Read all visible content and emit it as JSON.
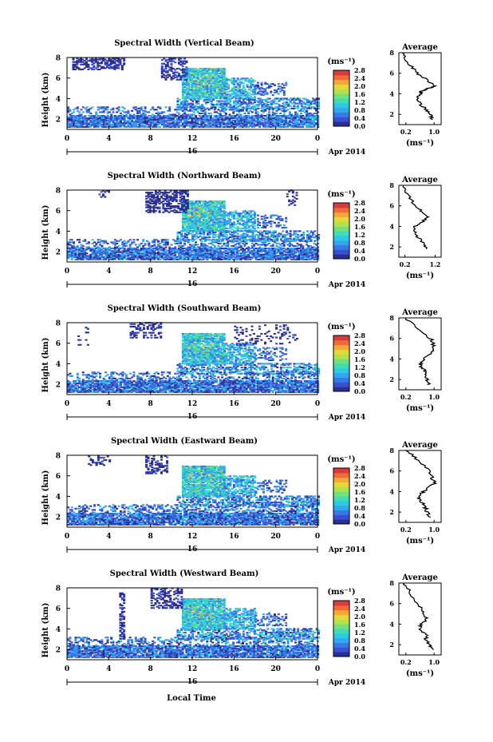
{
  "figure": {
    "xlabel": "Local Time",
    "time_label": "16",
    "date_label": "Apr 2014"
  },
  "colorbar": {
    "unit_label": "(ms⁻¹)",
    "ticks": [
      "2.8",
      "2.4",
      "2.0",
      "1.6",
      "1.2",
      "0.8",
      "0.4",
      "0.0"
    ],
    "colors": [
      "#2b2f8f",
      "#3c4fd0",
      "#3a78e8",
      "#33a6f0",
      "#2fc9e6",
      "#3fdcb5",
      "#74e07a",
      "#b6e04a",
      "#e6d83a",
      "#f7a63a",
      "#f06a3a",
      "#d93a3a"
    ]
  },
  "chart_data": [
    {
      "type": "heatmap",
      "title": "Spectral Width (Vertical Beam)",
      "ylabel": "Height (km)",
      "xlim": [
        0,
        24
      ],
      "ylim": [
        1,
        8
      ],
      "x_ticks": [
        "0",
        "4",
        "8",
        "12",
        "16",
        "20",
        "0"
      ],
      "y_ticks": [
        "2",
        "4",
        "6",
        "8"
      ],
      "avg": {
        "title": "Average",
        "xlabel": "(ms⁻¹)",
        "x_ticks": [
          "0.2",
          "1.0"
        ],
        "xlim": [
          0.0,
          1.2
        ],
        "y_ticks": [
          "2",
          "4",
          "6",
          "8"
        ],
        "profile": [
          [
            0.95,
            1.5
          ],
          [
            0.9,
            2.0
          ],
          [
            0.75,
            2.5
          ],
          [
            0.6,
            3.0
          ],
          [
            0.55,
            3.5
          ],
          [
            0.6,
            4.0
          ],
          [
            0.65,
            4.3
          ],
          [
            0.9,
            4.6
          ],
          [
            1.0,
            4.8
          ],
          [
            0.85,
            5.2
          ],
          [
            0.6,
            5.8
          ],
          [
            0.4,
            6.5
          ],
          [
            0.2,
            7.3
          ],
          [
            0.1,
            8.0
          ]
        ]
      }
    },
    {
      "type": "heatmap",
      "title": "Spectral Width (Northward Beam)",
      "ylabel": "Height (km)",
      "xlim": [
        0,
        24
      ],
      "ylim": [
        1,
        8
      ],
      "x_ticks": [
        "0",
        "4",
        "8",
        "12",
        "16",
        "20",
        "0"
      ],
      "y_ticks": [
        "2",
        "4",
        "6",
        "8"
      ],
      "avg": {
        "title": "Average",
        "xlabel": "(ms⁻¹)",
        "x_ticks": [
          "0.2",
          "1.2"
        ],
        "xlim": [
          0.0,
          1.4
        ],
        "y_ticks": [
          "2",
          "4",
          "6",
          "8"
        ],
        "profile": [
          [
            0.9,
            1.8
          ],
          [
            0.85,
            2.3
          ],
          [
            0.6,
            3.0
          ],
          [
            0.5,
            3.5
          ],
          [
            0.55,
            4.0
          ],
          [
            0.8,
            4.5
          ],
          [
            0.95,
            5.0
          ],
          [
            0.7,
            5.6
          ],
          [
            0.5,
            6.2
          ],
          [
            0.3,
            7.0
          ],
          [
            0.15,
            8.0
          ]
        ]
      }
    },
    {
      "type": "heatmap",
      "title": "Spectral Width (Southward Beam)",
      "ylabel": "Height (km)",
      "xlim": [
        0,
        24
      ],
      "ylim": [
        1,
        8
      ],
      "x_ticks": [
        "0",
        "4",
        "8",
        "12",
        "16",
        "20",
        "0"
      ],
      "y_ticks": [
        "2",
        "4",
        "6",
        "8"
      ],
      "avg": {
        "title": "Average",
        "xlabel": "(ms⁻¹)",
        "x_ticks": [
          "0.2",
          "1.0"
        ],
        "xlim": [
          0.0,
          1.2
        ],
        "y_ticks": [
          "2",
          "4",
          "6",
          "8"
        ],
        "profile": [
          [
            0.85,
            1.5
          ],
          [
            0.8,
            2.0
          ],
          [
            0.75,
            2.5
          ],
          [
            0.7,
            3.0
          ],
          [
            0.6,
            3.5
          ],
          [
            0.7,
            4.0
          ],
          [
            0.95,
            4.8
          ],
          [
            1.0,
            5.3
          ],
          [
            0.9,
            6.0
          ],
          [
            0.5,
            7.0
          ],
          [
            0.2,
            8.0
          ]
        ]
      }
    },
    {
      "type": "heatmap",
      "title": "Spectral Width (Eastward Beam)",
      "ylabel": "Height (km)",
      "xlim": [
        0,
        24
      ],
      "ylim": [
        1,
        8
      ],
      "x_ticks": [
        "0",
        "4",
        "8",
        "12",
        "16",
        "20",
        "0"
      ],
      "y_ticks": [
        "2",
        "4",
        "6",
        "8"
      ],
      "avg": {
        "title": "Average",
        "xlabel": "(ms⁻¹)",
        "x_ticks": [
          "0.2",
          "1.0"
        ],
        "xlim": [
          0.0,
          1.2
        ],
        "y_ticks": [
          "2",
          "4",
          "6",
          "8"
        ],
        "profile": [
          [
            0.85,
            1.5
          ],
          [
            0.8,
            2.0
          ],
          [
            0.75,
            2.5
          ],
          [
            0.65,
            3.0
          ],
          [
            0.55,
            3.5
          ],
          [
            0.7,
            4.0
          ],
          [
            1.0,
            4.8
          ],
          [
            0.95,
            5.4
          ],
          [
            0.85,
            6.2
          ],
          [
            0.5,
            7.2
          ],
          [
            0.2,
            8.0
          ]
        ]
      }
    },
    {
      "type": "heatmap",
      "title": "Spectral Width (Westward Beam)",
      "ylabel": "Height (km)",
      "xlim": [
        0,
        24
      ],
      "ylim": [
        1,
        8
      ],
      "x_ticks": [
        "0",
        "4",
        "8",
        "12",
        "16",
        "20",
        "0"
      ],
      "y_ticks": [
        "2",
        "4",
        "6",
        "8"
      ],
      "avg": {
        "title": "Average",
        "xlabel": "(ms⁻¹)",
        "x_ticks": [
          "0.2",
          "1.0"
        ],
        "xlim": [
          0.0,
          1.2
        ],
        "y_ticks": [
          "2",
          "4",
          "6",
          "8"
        ],
        "profile": [
          [
            1.0,
            1.5
          ],
          [
            0.85,
            2.0
          ],
          [
            0.75,
            2.5
          ],
          [
            0.8,
            3.0
          ],
          [
            0.6,
            3.5
          ],
          [
            0.65,
            4.0
          ],
          [
            0.8,
            4.6
          ],
          [
            0.7,
            5.3
          ],
          [
            0.5,
            6.2
          ],
          [
            0.3,
            7.2
          ],
          [
            0.15,
            8.0
          ]
        ]
      }
    }
  ]
}
